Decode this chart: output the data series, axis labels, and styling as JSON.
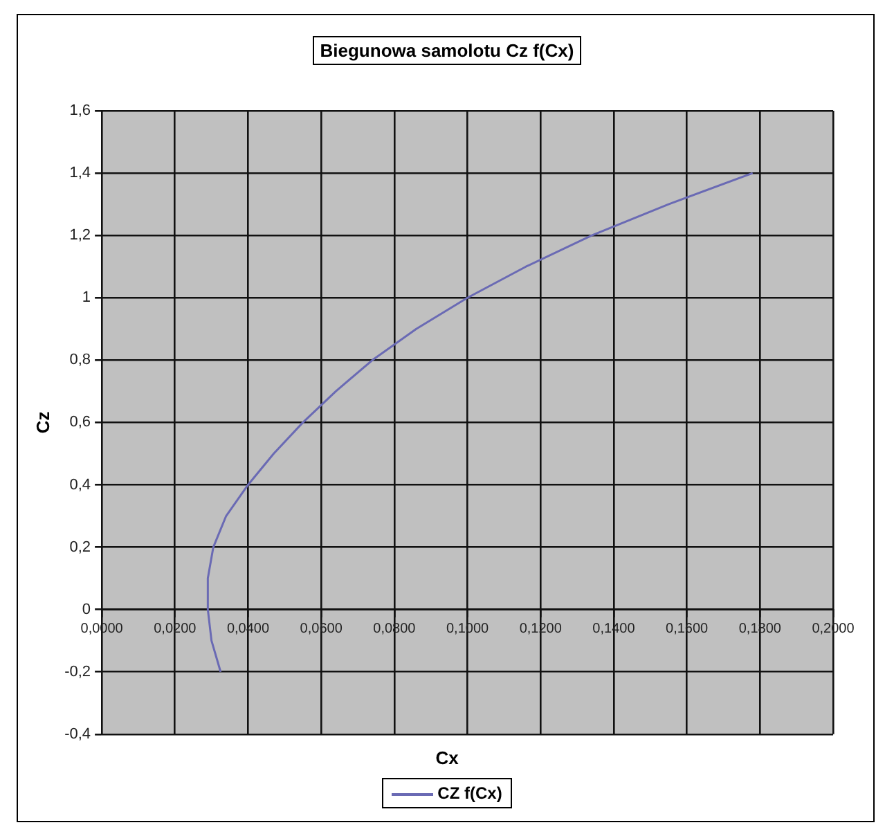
{
  "chart_data": {
    "type": "line",
    "title": "Biegunowa samolotu Cz f(Cx)",
    "xlabel": "Cx",
    "ylabel": "Cz",
    "x": [
      0.0325,
      0.03,
      0.029,
      0.029,
      0.0305,
      0.034,
      0.04,
      0.047,
      0.055,
      0.064,
      0.074,
      0.086,
      0.1,
      0.116,
      0.134,
      0.155,
      0.178
    ],
    "series": [
      {
        "name": "CZ f(Cx)",
        "color": "#6a6ab4",
        "values": [
          -0.2,
          -0.1,
          0,
          0.1,
          0.2,
          0.3,
          0.4,
          0.5,
          0.6,
          0.7,
          0.8,
          0.9,
          1.0,
          1.1,
          1.2,
          1.3,
          1.4
        ]
      }
    ],
    "xlim": [
      0,
      0.2
    ],
    "xticks": [
      {
        "value": 0,
        "label": "0,0000"
      },
      {
        "value": 0.02,
        "label": "0,0200"
      },
      {
        "value": 0.04,
        "label": "0,0400"
      },
      {
        "value": 0.06,
        "label": "0,0600"
      },
      {
        "value": 0.08,
        "label": "0,0800"
      },
      {
        "value": 0.1,
        "label": "0,1000"
      },
      {
        "value": 0.12,
        "label": "0,1200"
      },
      {
        "value": 0.14,
        "label": "0,1400"
      },
      {
        "value": 0.16,
        "label": "0,1600"
      },
      {
        "value": 0.18,
        "label": "0,1800"
      },
      {
        "value": 0.2,
        "label": "0,2000"
      }
    ],
    "ylim": [
      -0.4,
      1.6
    ],
    "yticks": [
      {
        "value": -0.4,
        "label": "-0,4"
      },
      {
        "value": -0.2,
        "label": "-0,2"
      },
      0,
      {
        "value": 0.2,
        "label": "0,2"
      },
      {
        "value": 0.4,
        "label": "0,4"
      },
      {
        "value": 0.6,
        "label": "0,6"
      },
      {
        "value": 0.8,
        "label": "0,8"
      },
      1,
      {
        "value": 1.2,
        "label": "1,2"
      },
      {
        "value": 1.4,
        "label": "1,4"
      },
      {
        "value": 1.6,
        "label": "1,6"
      }
    ],
    "grid": true,
    "legend": "bottom",
    "marker": "none",
    "line_style": "solid"
  }
}
